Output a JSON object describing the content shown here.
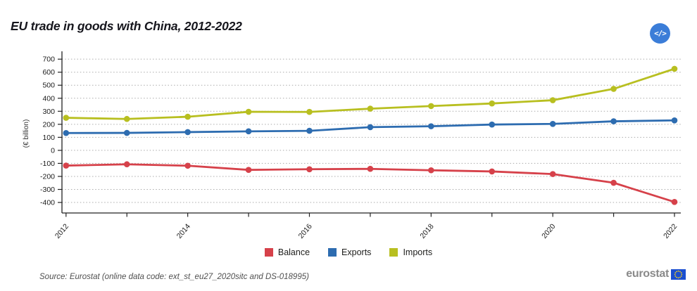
{
  "header": {
    "title": "EU trade in goods with China, 2012-2022",
    "embed_button_icon": "</>"
  },
  "chart_data": {
    "type": "line",
    "title": "EU trade in goods with China, 2012-2022",
    "xlabel": "",
    "ylabel": "(€ billion)",
    "x": [
      2012,
      2013,
      2014,
      2015,
      2016,
      2017,
      2018,
      2019,
      2020,
      2021,
      2022
    ],
    "xtick_labels": [
      "2012",
      "2014",
      "2016",
      "2018",
      "2020",
      "2022"
    ],
    "ylim": [
      -400,
      700
    ],
    "ytick_step": 100,
    "grid": "horizontal-dotted",
    "legend_position": "bottom-center",
    "series": [
      {
        "name": "Balance",
        "color": "#d6414a",
        "values": [
          -117,
          -107,
          -118,
          -150,
          -145,
          -142,
          -153,
          -162,
          -182,
          -249,
          -396
        ]
      },
      {
        "name": "Exports",
        "color": "#2d6cb0",
        "values": [
          133,
          134,
          140,
          146,
          150,
          178,
          185,
          198,
          203,
          223,
          230
        ]
      },
      {
        "name": "Imports",
        "color": "#b8bf20",
        "values": [
          250,
          241,
          258,
          296,
          295,
          320,
          340,
          360,
          385,
          472,
          626
        ]
      }
    ]
  },
  "footer": {
    "source": "Source: Eurostat (online data code: ext_st_eu27_2020sitc and DS-018995)",
    "logo_text": "eurostat"
  }
}
